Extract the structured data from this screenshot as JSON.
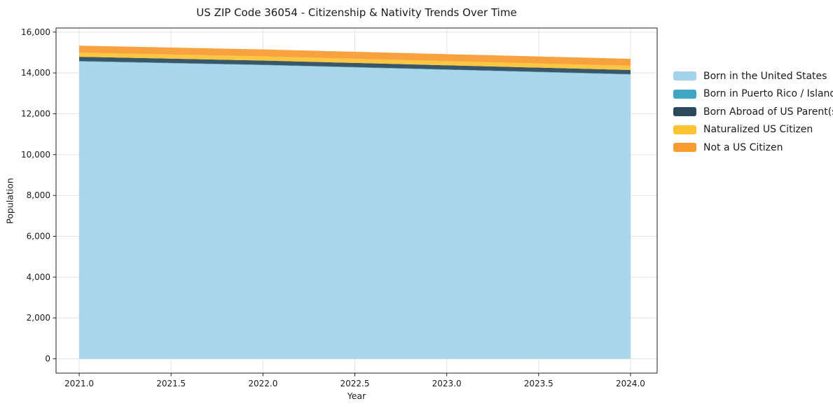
{
  "chart_data": {
    "type": "area",
    "stacked": true,
    "title": "US ZIP Code 36054 - Citizenship & Nativity Trends Over Time",
    "xlabel": "Year",
    "ylabel": "Population",
    "x": [
      2021,
      2022,
      2023,
      2024
    ],
    "series": [
      {
        "name": "Born in the United States",
        "color": "#a3d3e8",
        "values": [
          14560,
          14380,
          14150,
          13920
        ]
      },
      {
        "name": "Born in Puerto Rico / Islands",
        "color": "#41a6c4",
        "values": [
          20,
          20,
          20,
          20
        ]
      },
      {
        "name": "Born Abroad of US Parent(s)",
        "color": "#2b4a5e",
        "values": [
          210,
          205,
          205,
          205
        ]
      },
      {
        "name": "Naturalized US Citizen",
        "color": "#fcc332",
        "values": [
          205,
          205,
          205,
          205
        ]
      },
      {
        "name": "Not a US Citizen",
        "color": "#f89b30",
        "values": [
          340,
          340,
          340,
          340
        ]
      }
    ],
    "totals_by_year": [
      15335,
      15150,
      14920,
      14690
    ],
    "xlim": [
      2020.874,
      2024.145
    ],
    "ylim": [
      -700,
      16200
    ],
    "x_ticks": [
      2021.0,
      2021.5,
      2022.0,
      2022.5,
      2023.0,
      2023.5,
      2024.0
    ],
    "x_ticklabels": [
      "2021.0",
      "2021.5",
      "2022.0",
      "2022.5",
      "2023.0",
      "2023.5",
      "2024.0"
    ],
    "y_ticks": [
      0,
      2000,
      4000,
      6000,
      8000,
      10000,
      12000,
      14000,
      16000
    ],
    "y_ticklabels": [
      "0",
      "2,000",
      "4,000",
      "6,000",
      "8,000",
      "10,000",
      "12,000",
      "14,000",
      "16,000"
    ],
    "grid": true,
    "legend_position": "right",
    "colors": {
      "grid": "#e3e3e3",
      "spine": "#222222",
      "text": "#1a1a1a",
      "background": "#ffffff"
    }
  }
}
